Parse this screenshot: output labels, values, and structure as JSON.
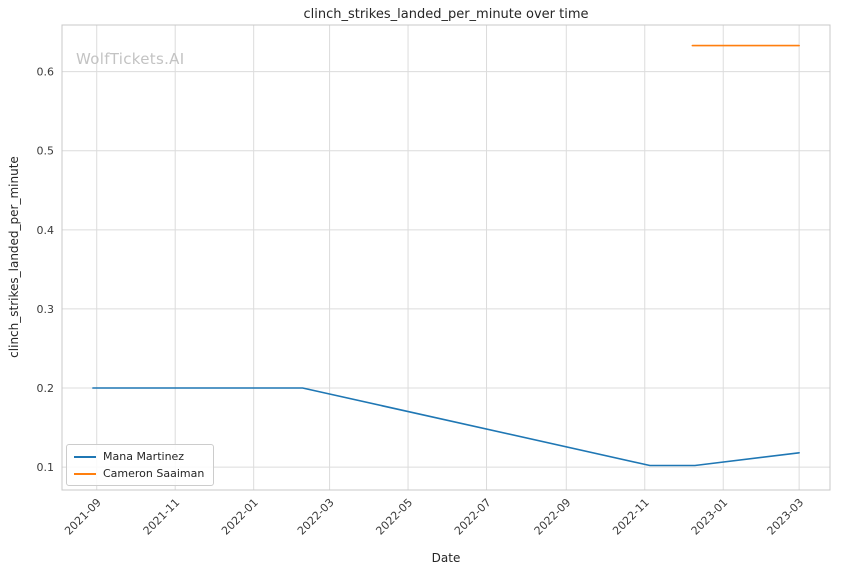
{
  "chart_data": {
    "type": "line",
    "title": "clinch_strikes_landed_per_minute over time",
    "xlabel": "Date",
    "ylabel": "clinch_strikes_landed_per_minute",
    "watermark": "WolfTickets.AI",
    "grid": true,
    "legend_position": "lower left",
    "x_ticks": [
      "2021-09",
      "2021-11",
      "2022-01",
      "2022-03",
      "2022-05",
      "2022-07",
      "2022-09",
      "2022-11",
      "2023-01",
      "2023-03"
    ],
    "y_ticks": [
      0.1,
      0.2,
      0.3,
      0.4,
      0.5,
      0.6
    ],
    "xlim": [
      "2021-08-05",
      "2023-03-25"
    ],
    "ylim": [
      0.071,
      0.659
    ],
    "colors": {
      "grid": "#dcdcdc",
      "border": "#c8c8c8",
      "text": "#262626"
    },
    "series": [
      {
        "name": "Mana Martinez",
        "color": "#1f77b4",
        "points": [
          [
            "2021-08-29",
            0.2
          ],
          [
            "2022-02-08",
            0.2
          ],
          [
            "2022-11-05",
            0.102
          ],
          [
            "2022-12-10",
            0.102
          ],
          [
            "2023-03-01",
            0.118
          ]
        ]
      },
      {
        "name": "Cameron Saaiman",
        "color": "#ff7f0e",
        "points": [
          [
            "2022-12-08",
            0.633
          ],
          [
            "2023-03-01",
            0.633
          ]
        ]
      }
    ]
  }
}
